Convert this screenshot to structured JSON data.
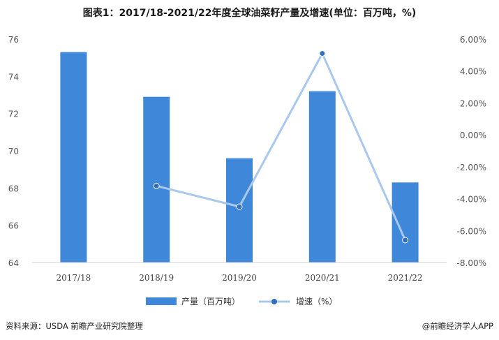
{
  "title": "图表1：2017/18-2021/22年度全球油菜籽产量及增速(单位：百万吨，%)",
  "source": "资料来源：USDA 前瞻产业研究院整理",
  "brand": "@前瞻经济学人APP",
  "colors": {
    "bar": "#3f87d9",
    "line": "#a8c8ef",
    "marker": "#2f6fbf"
  },
  "chart_data": {
    "type": "bar",
    "categories": [
      "2017/18",
      "2018/19",
      "2019/20",
      "2020/21",
      "2021/22"
    ],
    "series": [
      {
        "name": "产量（百万吨）",
        "type": "bar",
        "axis": "left",
        "values": [
          75.3,
          72.9,
          69.6,
          73.2,
          68.3
        ]
      },
      {
        "name": "增速（%）",
        "type": "line",
        "axis": "right",
        "values": [
          null,
          -3.2,
          -4.5,
          5.1,
          -6.6
        ]
      }
    ],
    "y_left": {
      "ylim": [
        64,
        76
      ],
      "ticks": [
        "64",
        "66",
        "68",
        "70",
        "72",
        "74",
        "76"
      ]
    },
    "y_right": {
      "ylim": [
        -8,
        6
      ],
      "ticks": [
        "-8.00%",
        "-6.00%",
        "-4.00%",
        "-2.00%",
        "0.00%",
        "2.00%",
        "4.00%",
        "6.00%"
      ]
    },
    "legend": {
      "position": "bottom",
      "items": [
        "产量（百万吨）",
        "增速（%）"
      ]
    },
    "grid": false
  }
}
